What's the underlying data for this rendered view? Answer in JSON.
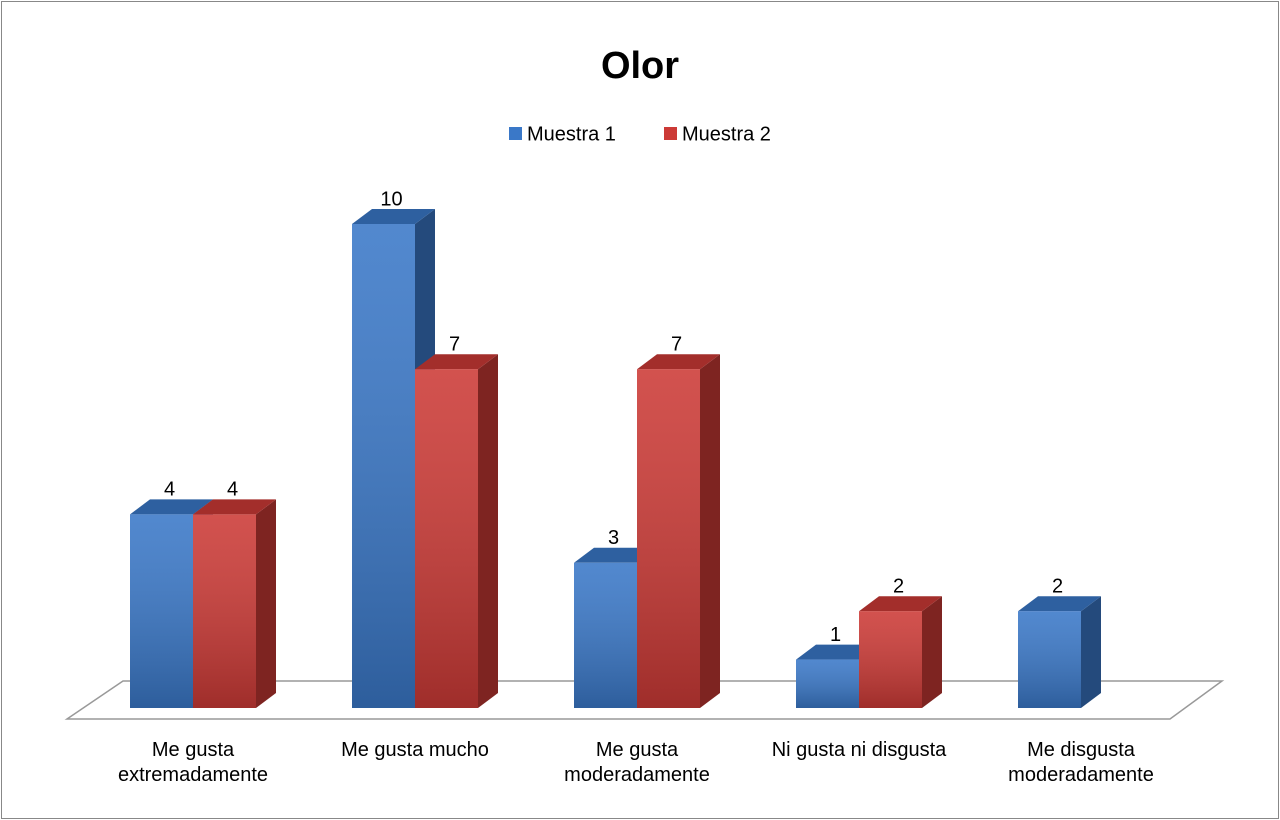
{
  "chart_data": {
    "type": "bar3d",
    "title": "Olor",
    "categories": [
      "Me gusta extremadamente",
      "Me gusta mucho",
      "Me gusta moderadamente",
      "Ni gusta ni disgusta",
      "Me disgusta moderadamente"
    ],
    "series": [
      {
        "name": "Muestra 1",
        "color": "#3a78c8",
        "values": [
          4,
          10,
          3,
          1,
          2
        ]
      },
      {
        "name": "Muestra 2",
        "color": "#cc3a36",
        "values": [
          4,
          7,
          7,
          2,
          null
        ]
      }
    ],
    "legend": "top",
    "data_labels": true
  }
}
